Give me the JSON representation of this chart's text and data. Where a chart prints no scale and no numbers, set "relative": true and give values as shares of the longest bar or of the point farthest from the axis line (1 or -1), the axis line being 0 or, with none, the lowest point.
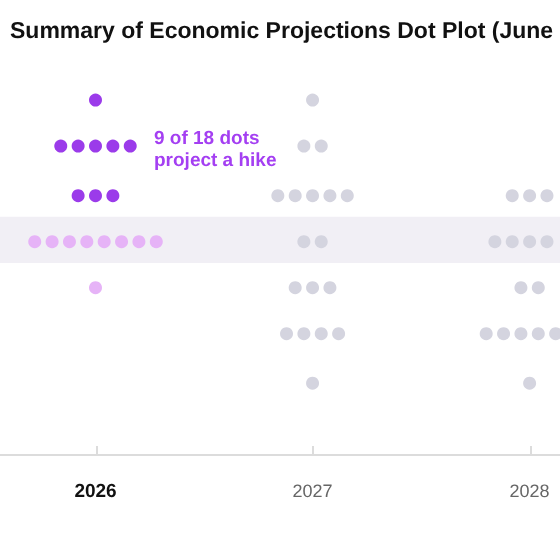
{
  "chart_data": {
    "type": "scatter",
    "title": "Summary of Economic Projections Dot Plot (June",
    "relative": true,
    "marker": "circle",
    "xlim": [
      2025.56,
      2028.14
    ],
    "xticks": [
      2026,
      2027,
      2028
    ],
    "bands": [
      {
        "axis": "y",
        "from": 0.54,
        "to": 0.67,
        "color": "#f1eff5"
      }
    ],
    "annotations": [
      "9 of 18 dots project a hike"
    ],
    "series": [
      {
        "color": "#9b3bea",
        "x": [
          2026.0,
          2025.84,
          2025.92,
          2026.0,
          2026.08,
          2026.16,
          2025.92,
          2026.0,
          2026.08
        ],
        "values": [
          1,
          0.87,
          0.87,
          0.87,
          0.87,
          0.87,
          0.73,
          0.73,
          0.73
        ]
      },
      {
        "color": "#e6b3f7",
        "x": [
          2025.72,
          2025.8,
          2025.88,
          2025.96,
          2026.04,
          2026.12,
          2026.2,
          2026.28,
          2026.0
        ],
        "values": [
          0.6,
          0.6,
          0.6,
          0.6,
          0.6,
          0.6,
          0.6,
          0.6,
          0.47
        ]
      },
      {
        "color": "#d4d4df",
        "x": [
          2027.0,
          2026.96,
          2027.04,
          2026.84,
          2026.92,
          2027.0,
          2027.08,
          2027.16,
          2027.92,
          2028.0,
          2028.08,
          2026.96,
          2027.04,
          2027.84,
          2027.92,
          2028.0,
          2028.08,
          2026.92,
          2027.0,
          2027.08,
          2027.96,
          2028.04,
          2026.88,
          2026.96,
          2027.04,
          2027.12,
          2027.8,
          2027.88,
          2027.96,
          2028.04,
          2028.12,
          2027.0,
          2028.0
        ],
        "values": [
          1,
          0.87,
          0.87,
          0.73,
          0.73,
          0.73,
          0.73,
          0.73,
          0.73,
          0.73,
          0.73,
          0.6,
          0.6,
          0.6,
          0.6,
          0.6,
          0.6,
          0.47,
          0.47,
          0.47,
          0.47,
          0.47,
          0.34,
          0.34,
          0.34,
          0.34,
          0.34,
          0.34,
          0.34,
          0.34,
          0.34,
          0.2,
          0.2
        ]
      }
    ]
  }
}
